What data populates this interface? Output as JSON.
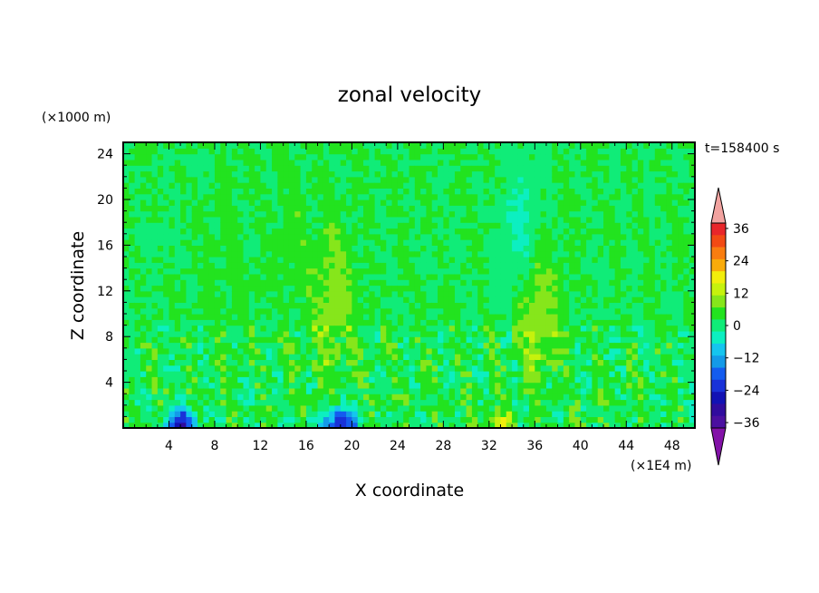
{
  "chart_data": {
    "type": "heatmap",
    "title": "zonal velocity",
    "xlabel": "X coordinate",
    "ylabel": "Z coordinate",
    "x_unit": "(×1E4 m)",
    "y_unit": "(×1000 m)",
    "time_label": "t=158400 s",
    "xlim": [
      0,
      50
    ],
    "ylim": [
      0,
      25
    ],
    "x_ticks": [
      4,
      8,
      12,
      16,
      20,
      24,
      28,
      32,
      36,
      40,
      44,
      48
    ],
    "x_tick_labels": [
      "4",
      "8",
      "12",
      "16",
      "20",
      "24",
      "28",
      "32",
      "36",
      "40",
      "44",
      "48"
    ],
    "y_ticks": [
      4,
      8,
      12,
      16,
      20,
      24
    ],
    "y_tick_labels": [
      "4",
      "8",
      "12",
      "16",
      "20",
      "24"
    ],
    "grid": false,
    "colorbar": {
      "levels": [
        -36,
        -30,
        -24,
        -18,
        -12,
        -6,
        0,
        6,
        12,
        18,
        24,
        30,
        36
      ],
      "labels": [
        "36",
        "24",
        "12",
        "0",
        "−12",
        "−24",
        "−36"
      ],
      "label_values": [
        36,
        24,
        12,
        0,
        -12,
        -24,
        -36
      ],
      "colors_top_to_bottom": [
        "#e8262a",
        "#f24a14",
        "#f97d10",
        "#f9ab0b",
        "#f2ee0c",
        "#c6f20d",
        "#86e61b",
        "#22e31f",
        "#10ec78",
        "#0cefc1",
        "#15c5ef",
        "#149ae8",
        "#145cef",
        "#1932d8",
        "#1212b4",
        "#300c9e",
        "#4b10a0"
      ],
      "over_color": "#f2a3a0",
      "under_color": "#8312a8"
    },
    "field_summary": {
      "background_value": 2,
      "features": [
        {
          "x": 9,
          "z": 15,
          "value": 4,
          "desc": "weak positive"
        },
        {
          "x": 15,
          "z": 16,
          "value": 4,
          "desc": "weak positive"
        },
        {
          "x": 18.5,
          "z": 11,
          "value": 9,
          "desc": "positive column"
        },
        {
          "x": 36,
          "z": 11,
          "value": 12,
          "desc": "positive column"
        },
        {
          "x": 35,
          "z": 16,
          "value": -6,
          "desc": "negative column"
        },
        {
          "x": 5,
          "z": 0.5,
          "value": -24,
          "desc": "negative near surface"
        },
        {
          "x": 19,
          "z": 0.5,
          "value": -24,
          "desc": "negative near surface"
        },
        {
          "x": 33,
          "z": 0.5,
          "value": 10,
          "desc": "positive near surface"
        }
      ]
    }
  }
}
